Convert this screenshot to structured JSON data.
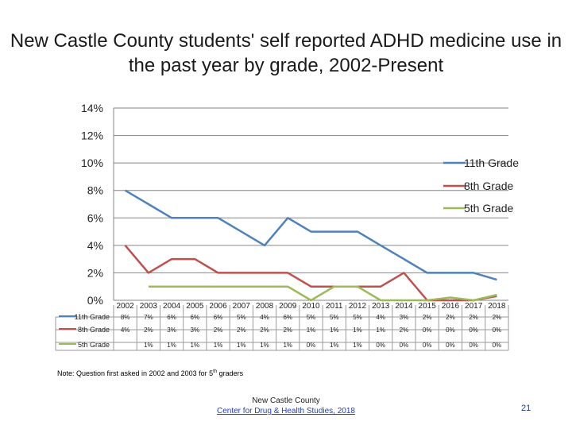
{
  "title": "New Castle County students' self reported ADHD medicine use in the past year by grade, 2002-Present",
  "note": {
    "before": "Note: Question first asked in 2002 and 2003 for 5",
    "sup": "th",
    "after": " graders"
  },
  "source": {
    "org": "New Castle County",
    "link_text": "Center for Drug & Health Studies, 2018"
  },
  "page_number": "21",
  "chart_data": {
    "type": "line",
    "title": "New Castle County students' self reported ADHD medicine use in the past year by grade, 2002-Present",
    "categories": [
      "2002",
      "2003",
      "2004",
      "2005",
      "2006",
      "2007",
      "2008",
      "2009",
      "2010",
      "2011",
      "2012",
      "2013",
      "2014",
      "2015",
      "2016",
      "2017",
      "2018"
    ],
    "y_ticks": [
      "0%",
      "2%",
      "4%",
      "6%",
      "8%",
      "10%",
      "12%",
      "14%"
    ],
    "ylim": [
      0,
      14
    ],
    "grid": true,
    "legend_position": "right",
    "series": [
      {
        "name": "11th Grade",
        "color": "#4f81bd",
        "values": [
          8,
          7,
          6,
          6,
          6,
          5,
          4,
          6,
          5,
          5,
          5,
          4,
          3,
          2,
          2,
          2,
          1.5
        ],
        "labels": [
          "8%",
          "7%",
          "6%",
          "6%",
          "6%",
          "5%",
          "4%",
          "6%",
          "5%",
          "5%",
          "5%",
          "4%",
          "3%",
          "2%",
          "2%",
          "2%",
          "2%"
        ]
      },
      {
        "name": "8th Grade",
        "color": "#c0504d",
        "values": [
          4,
          2,
          3,
          3,
          2,
          2,
          2,
          2,
          1,
          1,
          1,
          1,
          2,
          0,
          0,
          0,
          0.3
        ],
        "labels": [
          "4%",
          "2%",
          "3%",
          "3%",
          "2%",
          "2%",
          "2%",
          "2%",
          "1%",
          "1%",
          "1%",
          "1%",
          "2%",
          "0%",
          "0%",
          "0%",
          "0%"
        ]
      },
      {
        "name": "5th Grade",
        "color": "#9bbb59",
        "values": [
          null,
          1,
          1,
          1,
          1,
          1,
          1,
          1,
          0,
          1,
          1,
          0,
          0,
          0,
          0.2,
          0,
          0.4
        ],
        "labels": [
          "",
          "1%",
          "1%",
          "1%",
          "1%",
          "1%",
          "1%",
          "1%",
          "0%",
          "1%",
          "1%",
          "0%",
          "0%",
          "0%",
          "0%",
          "0%",
          "0%"
        ]
      }
    ]
  }
}
